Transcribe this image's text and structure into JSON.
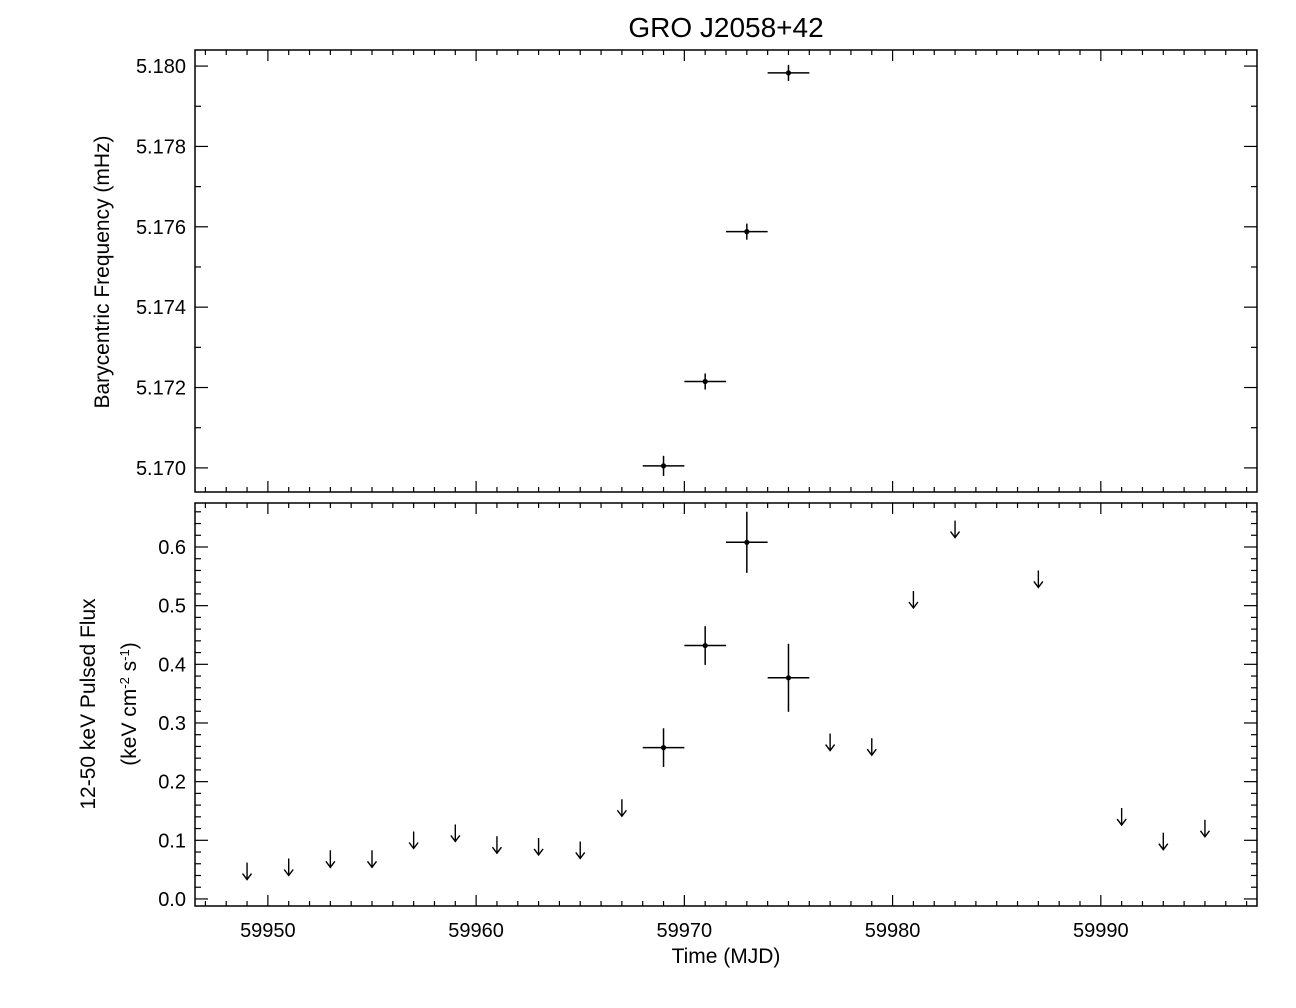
{
  "chart_data": [
    {
      "type": "scatter",
      "title": "GRO J2058+42",
      "xlabel": "",
      "ylabel": "Barycentric Frequency (mHz)",
      "xlim": [
        59946.5,
        59997.5
      ],
      "ylim": [
        5.1694,
        5.1804
      ],
      "xticks": [
        59950,
        59960,
        59970,
        59980,
        59990
      ],
      "yticks": [
        5.17,
        5.172,
        5.174,
        5.176,
        5.178,
        5.18
      ],
      "ytick_labels": [
        "5.170",
        "5.172",
        "5.174",
        "5.176",
        "5.178",
        "5.180"
      ],
      "x_tick_labels_shown": false,
      "series": [
        {
          "points": [
            {
              "x": 59969.0,
              "xerr": 1.0,
              "y": 5.17005,
              "yerr": 0.00025
            },
            {
              "x": 59971.0,
              "xerr": 1.0,
              "y": 5.17215,
              "yerr": 0.0002
            },
            {
              "x": 59973.0,
              "xerr": 1.0,
              "y": 5.17588,
              "yerr": 0.0002
            },
            {
              "x": 59975.0,
              "xerr": 1.0,
              "y": 5.17983,
              "yerr": 0.0002
            }
          ]
        }
      ]
    },
    {
      "type": "scatter",
      "title": "",
      "xlabel": "Time (MJD)",
      "ylabel": "12-50 keV Pulsed Flux",
      "ylabel_line2_parts": [
        "(keV cm",
        "-2",
        " s",
        "-1",
        ")"
      ],
      "xlim": [
        59946.5,
        59997.5
      ],
      "ylim": [
        -0.012,
        0.675
      ],
      "xticks": [
        59950,
        59960,
        59970,
        59980,
        59990
      ],
      "xtick_labels": [
        "59950",
        "59960",
        "59970",
        "59980",
        "59990"
      ],
      "yticks": [
        0.0,
        0.1,
        0.2,
        0.3,
        0.4,
        0.5,
        0.6
      ],
      "ytick_labels": [
        "0.0",
        "0.1",
        "0.2",
        "0.3",
        "0.4",
        "0.5",
        "0.6"
      ],
      "detections": [
        {
          "x": 59969.0,
          "xerr": 1.0,
          "y": 0.258,
          "yerr": 0.033
        },
        {
          "x": 59971.0,
          "xerr": 1.0,
          "y": 0.432,
          "yerr": 0.033
        },
        {
          "x": 59973.0,
          "xerr": 1.0,
          "y": 0.608,
          "yerr": 0.052
        },
        {
          "x": 59975.0,
          "xerr": 1.0,
          "y": 0.377,
          "yerr": 0.058
        }
      ],
      "upper_limits": [
        {
          "x": 59949.0,
          "y": 0.062
        },
        {
          "x": 59951.0,
          "y": 0.069
        },
        {
          "x": 59953.0,
          "y": 0.083
        },
        {
          "x": 59955.0,
          "y": 0.083
        },
        {
          "x": 59957.0,
          "y": 0.115
        },
        {
          "x": 59959.0,
          "y": 0.127
        },
        {
          "x": 59961.0,
          "y": 0.107
        },
        {
          "x": 59963.0,
          "y": 0.104
        },
        {
          "x": 59965.0,
          "y": 0.098
        },
        {
          "x": 59967.0,
          "y": 0.17
        },
        {
          "x": 59977.0,
          "y": 0.282
        },
        {
          "x": 59979.0,
          "y": 0.274
        },
        {
          "x": 59981.0,
          "y": 0.525
        },
        {
          "x": 59983.0,
          "y": 0.645
        },
        {
          "x": 59987.0,
          "y": 0.56
        },
        {
          "x": 59991.0,
          "y": 0.155
        },
        {
          "x": 59993.0,
          "y": 0.113
        },
        {
          "x": 59995.0,
          "y": 0.135
        }
      ]
    }
  ]
}
